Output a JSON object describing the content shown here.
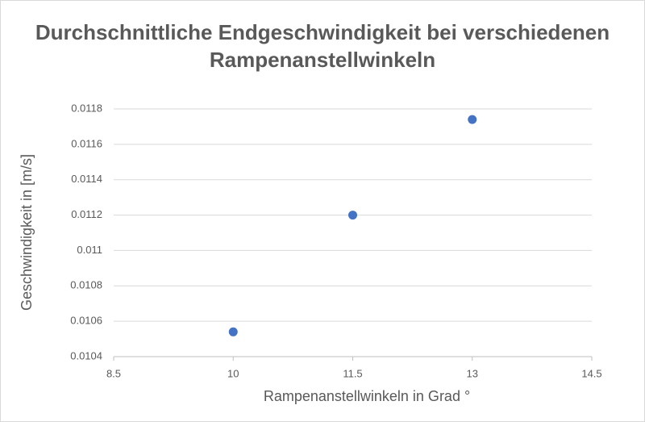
{
  "chart_data": {
    "type": "scatter",
    "title": "Durchschnittliche Endgeschwindigkeit bei verschiedenen Rampenanstellwinkeln",
    "x_label": "Rampenanstellwinkeln in Grad °",
    "y_label": "Geschwindigkeit in [m/s]",
    "series": [
      {
        "name": "Geschwindigkeit",
        "color": "#4472c4",
        "x": [
          10,
          11.5,
          13
        ],
        "values": [
          0.01054,
          0.0112,
          0.01174
        ]
      }
    ],
    "xlim": [
      8.5,
      14.5
    ],
    "xticks": [
      8.5,
      10,
      11.5,
      13,
      14.5
    ],
    "ylim": [
      0.0104,
      0.0118
    ],
    "yticks": [
      0.0104,
      0.0106,
      0.0108,
      0.011,
      0.0112,
      0.0114,
      0.0116,
      0.0118
    ],
    "grid": true
  }
}
